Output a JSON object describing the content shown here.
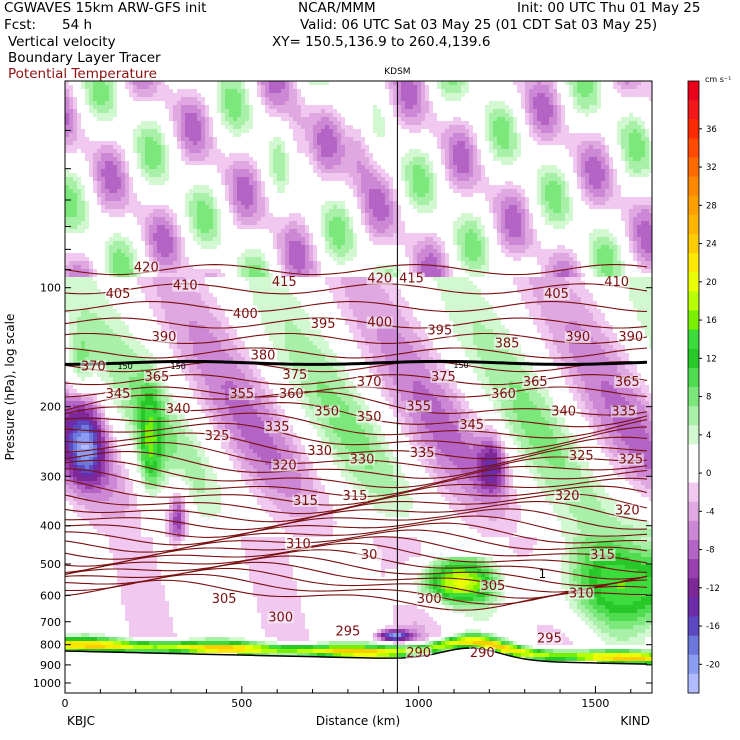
{
  "header": {
    "model": "CGWAVES 15km ARW-GFS init",
    "fcst_label": "Fcst:",
    "fcst_value": "54 h",
    "fields": [
      "Vertical velocity",
      "Boundary Layer Tracer",
      "Potential Temperature"
    ],
    "org": "NCAR/MMM",
    "init": "Init: 00 UTC Thu 01 May 25",
    "valid": "Valid: 06 UTC Sat 03 May 25 (01 CDT Sat 03 May 25)",
    "xy": "XY= 150.5,136.9 to 260.4,139.6"
  },
  "colors": {
    "theta": "#7a1010",
    "tracer": "#000000",
    "ground": "#ffffff"
  },
  "chart_data": {
    "type": "heatmap",
    "title": "",
    "station_marker": {
      "label": "KDSM",
      "distance_km": 940
    },
    "xlabel": "Distance (km)",
    "ylabel": "Pressure (hPa), log scale",
    "x_range": [
      0,
      1660
    ],
    "y_range_hpa": [
      30,
      1060
    ],
    "y_scale": "log",
    "x_ticks": [
      0,
      500,
      1000,
      1500
    ],
    "x_tick_labels": [
      "0",
      "500",
      "1000",
      "1500"
    ],
    "y_ticks": [
      100,
      200,
      300,
      400,
      500,
      600,
      700,
      800,
      900,
      1000
    ],
    "y_tick_labels": [
      "100",
      "200",
      "300",
      "400",
      "500",
      "600",
      "700",
      "800",
      "900",
      "1000"
    ],
    "endpoints": {
      "left": "KBJC",
      "right": "KIND"
    },
    "colorbar": {
      "unit": "cm s⁻¹",
      "ticks": [
        36,
        32,
        28,
        24,
        20,
        16,
        12,
        8,
        4,
        0,
        -4,
        -8,
        -12,
        -16,
        -20
      ],
      "tick_labels": [
        "36",
        "32",
        "28",
        "24",
        "20",
        "16",
        "12",
        "8",
        "4",
        "0",
        "-4",
        "-8",
        "-12",
        "-16",
        "-20"
      ],
      "levels": [
        {
          "v": 40,
          "c": "#e8001c"
        },
        {
          "v": 38,
          "c": "#f01818"
        },
        {
          "v": 36,
          "c": "#ff2a00"
        },
        {
          "v": 34,
          "c": "#ff4a00"
        },
        {
          "v": 32,
          "c": "#ff6a00"
        },
        {
          "v": 30,
          "c": "#ff8800"
        },
        {
          "v": 28,
          "c": "#ffa000"
        },
        {
          "v": 26,
          "c": "#ffb400"
        },
        {
          "v": 24,
          "c": "#ffcc00"
        },
        {
          "v": 22,
          "c": "#ffe800"
        },
        {
          "v": 20,
          "c": "#eaff00"
        },
        {
          "v": 18,
          "c": "#b8ff00"
        },
        {
          "v": 16,
          "c": "#78f000"
        },
        {
          "v": 14,
          "c": "#3cdc3c"
        },
        {
          "v": 12,
          "c": "#28c828"
        },
        {
          "v": 10,
          "c": "#50dc50"
        },
        {
          "v": 8,
          "c": "#7ce87c"
        },
        {
          "v": 6,
          "c": "#a8f0a8"
        },
        {
          "v": 4,
          "c": "#d2f8d2"
        },
        {
          "v": 2,
          "c": "#ffffff"
        },
        {
          "v": 0,
          "c": "#ffffff"
        },
        {
          "v": -2,
          "c": "#f0c8f0"
        },
        {
          "v": -4,
          "c": "#e0a8e0"
        },
        {
          "v": -6,
          "c": "#cc88d4"
        },
        {
          "v": -8,
          "c": "#b464c4"
        },
        {
          "v": -10,
          "c": "#9840b0"
        },
        {
          "v": -12,
          "c": "#7e2898"
        },
        {
          "v": -14,
          "c": "#6a2ca8"
        },
        {
          "v": -16,
          "c": "#5c48c0"
        },
        {
          "v": -18,
          "c": "#6c78dc"
        },
        {
          "v": -20,
          "c": "#8c9cf0"
        },
        {
          "v": -22,
          "c": "#b0bcff"
        }
      ]
    },
    "theta_labels": [
      {
        "x": 230,
        "p": 90,
        "t": "420"
      },
      {
        "x": 150,
        "p": 105,
        "t": "405"
      },
      {
        "x": 340,
        "p": 100,
        "t": "410"
      },
      {
        "x": 620,
        "p": 98,
        "t": "415"
      },
      {
        "x": 890,
        "p": 96,
        "t": "420"
      },
      {
        "x": 980,
        "p": 96,
        "t": "415"
      },
      {
        "x": 510,
        "p": 118,
        "t": "400"
      },
      {
        "x": 730,
        "p": 125,
        "t": "395"
      },
      {
        "x": 890,
        "p": 124,
        "t": "400"
      },
      {
        "x": 1060,
        "p": 130,
        "t": "395"
      },
      {
        "x": 1390,
        "p": 105,
        "t": "405"
      },
      {
        "x": 1560,
        "p": 98,
        "t": "410"
      },
      {
        "x": 280,
        "p": 135,
        "t": "390"
      },
      {
        "x": 1450,
        "p": 135,
        "t": "390"
      },
      {
        "x": 1600,
        "p": 135,
        "t": "390"
      },
      {
        "x": 560,
        "p": 150,
        "t": "380"
      },
      {
        "x": 1250,
        "p": 140,
        "t": "385"
      },
      {
        "x": 80,
        "p": 160,
        "t": "370"
      },
      {
        "x": 260,
        "p": 170,
        "t": "365"
      },
      {
        "x": 1070,
        "p": 170,
        "t": "375"
      },
      {
        "x": 650,
        "p": 168,
        "t": "375"
      },
      {
        "x": 860,
        "p": 175,
        "t": "370"
      },
      {
        "x": 1330,
        "p": 175,
        "t": "365"
      },
      {
        "x": 1590,
        "p": 175,
        "t": "365"
      },
      {
        "x": 150,
        "p": 188,
        "t": "345"
      },
      {
        "x": 1240,
        "p": 188,
        "t": "360"
      },
      {
        "x": 500,
        "p": 188,
        "t": "355"
      },
      {
        "x": 640,
        "p": 188,
        "t": "360"
      },
      {
        "x": 320,
        "p": 205,
        "t": "340"
      },
      {
        "x": 1000,
        "p": 202,
        "t": "355"
      },
      {
        "x": 740,
        "p": 208,
        "t": "350"
      },
      {
        "x": 860,
        "p": 215,
        "t": "350"
      },
      {
        "x": 1410,
        "p": 208,
        "t": "340"
      },
      {
        "x": 1580,
        "p": 208,
        "t": "335"
      },
      {
        "x": 600,
        "p": 228,
        "t": "335"
      },
      {
        "x": 1150,
        "p": 225,
        "t": "345"
      },
      {
        "x": 430,
        "p": 240,
        "t": "325"
      },
      {
        "x": 720,
        "p": 262,
        "t": "330"
      },
      {
        "x": 840,
        "p": 275,
        "t": "330"
      },
      {
        "x": 1010,
        "p": 265,
        "t": "335"
      },
      {
        "x": 1460,
        "p": 270,
        "t": "325"
      },
      {
        "x": 1600,
        "p": 275,
        "t": "325"
      },
      {
        "x": 620,
        "p": 285,
        "t": "320"
      },
      {
        "x": 680,
        "p": 350,
        "t": "315"
      },
      {
        "x": 820,
        "p": 340,
        "t": "315"
      },
      {
        "x": 1420,
        "p": 340,
        "t": "320"
      },
      {
        "x": 1590,
        "p": 370,
        "t": "320"
      },
      {
        "x": 660,
        "p": 450,
        "t": "310"
      },
      {
        "x": 1520,
        "p": 480,
        "t": "315"
      },
      {
        "x": 860,
        "p": 480,
        "t": "30"
      },
      {
        "x": 1460,
        "p": 600,
        "t": "310"
      },
      {
        "x": 450,
        "p": 620,
        "t": "305"
      },
      {
        "x": 1210,
        "p": 575,
        "t": "305"
      },
      {
        "x": 610,
        "p": 690,
        "t": "300"
      },
      {
        "x": 1030,
        "p": 620,
        "t": "300"
      },
      {
        "x": 800,
        "p": 750,
        "t": "295"
      },
      {
        "x": 1370,
        "p": 780,
        "t": "295"
      },
      {
        "x": 1000,
        "p": 850,
        "t": "290"
      },
      {
        "x": 1180,
        "p": 850,
        "t": "290"
      }
    ],
    "tracer_labels": [
      {
        "x": 170,
        "p": 158,
        "t": "150"
      },
      {
        "x": 320,
        "p": 158,
        "t": "150"
      },
      {
        "x": 1120,
        "p": 157,
        "t": "150"
      }
    ],
    "tracer_region_label": {
      "x": 1350,
      "p": 530,
      "t": "1"
    }
  }
}
